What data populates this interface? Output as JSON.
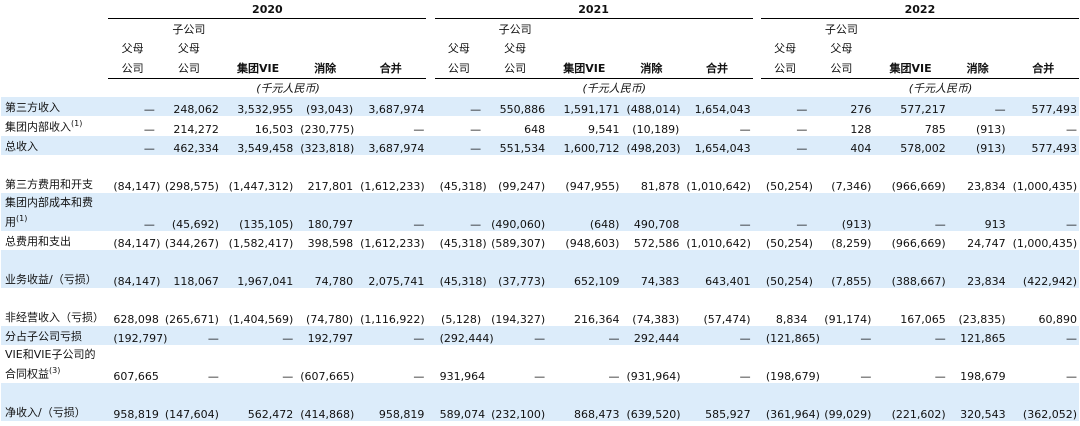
{
  "years": [
    "2020",
    "2021",
    "2022"
  ],
  "sub_header": "子公司",
  "columns": {
    "parent_line1": "父母",
    "parent_line2": "公司",
    "sub_line2": "父母",
    "sub_line3": "公司",
    "vie": "集团VIE",
    "elim": "消除",
    "total": "合并"
  },
  "unit_label": "(千元人民币)",
  "rows": [
    {
      "label": "第三方收入",
      "sup": "",
      "shaded": true,
      "tall": false,
      "cells": [
        "—",
        "248,062",
        "3,532,955",
        "(93,043)",
        "3,687,974",
        "—",
        "550,886",
        "1,591,171",
        "(488,014)",
        "1,654,043",
        "—",
        "276",
        "577,217",
        "—",
        "577,493"
      ]
    },
    {
      "label": "集团内部收入",
      "sup": "(1)",
      "shaded": false,
      "tall": false,
      "cells": [
        "—",
        "214,272",
        "16,503",
        "(230,775)",
        "—",
        "—",
        "648",
        "9,541",
        "(10,189)",
        "—",
        "—",
        "128",
        "785",
        "(913)",
        "—"
      ]
    },
    {
      "label": "总收入",
      "sup": "",
      "shaded": true,
      "tall": false,
      "cells": [
        "—",
        "462,334",
        "3,549,458",
        "(323,818)",
        "3,687,974",
        "—",
        "551,534",
        "1,600,712",
        "(498,203)",
        "1,654,043",
        "—",
        "404",
        "578,002",
        "(913)",
        "577,493"
      ]
    },
    {
      "label": "第三方费用和开支",
      "sup": "",
      "shaded": false,
      "tall": true,
      "cells": [
        "(84,147)",
        "(298,575)",
        "(1,447,312)",
        "217,801",
        "(1,612,233)",
        "(45,318)",
        "(99,247)",
        "(947,955)",
        "81,878",
        "(1,010,642)",
        "(50,254)",
        "(7,346)",
        "(966,669)",
        "23,834",
        "(1,000,435)"
      ]
    },
    {
      "label": "集团内部成本和费用",
      "sup": "(1)",
      "shaded": true,
      "tall": true,
      "cells": [
        "—",
        "(45,692)",
        "(135,105)",
        "180,797",
        "—",
        "—",
        "(490,060)",
        "(648)",
        "490,708",
        "—",
        "—",
        "(913)",
        "—",
        "913",
        "—"
      ]
    },
    {
      "label": "总费用和支出",
      "sup": "",
      "shaded": false,
      "tall": false,
      "cells": [
        "(84,147)",
        "(344,267)",
        "(1,582,417)",
        "398,598",
        "(1,612,233)",
        "(45,318)",
        "(589,307)",
        "(948,603)",
        "572,586",
        "(1,010,642)",
        "(50,254)",
        "(8,259)",
        "(966,669)",
        "24,747",
        "(1,000,435)"
      ]
    },
    {
      "label": "业务收益/（亏损）",
      "sup": "",
      "shaded": true,
      "tall": true,
      "cells": [
        "(84,147)",
        "118,067",
        "1,967,041",
        "74,780",
        "2,075,741",
        "(45,318)",
        "(37,773)",
        "652,109",
        "74,383",
        "643,401",
        "(50,254)",
        "(7,855)",
        "(388,667)",
        "23,834",
        "(422,942)"
      ]
    },
    {
      "label": "非经营收入（亏损）",
      "sup": "",
      "shaded": false,
      "tall": true,
      "cells": [
        "628,098",
        "(265,671)",
        "(1,404,569)",
        "(74,780)",
        "(1,116,922)",
        "(5,128)",
        "(194,327)",
        "216,364",
        "(74,383)",
        "(57,474)",
        "8,834",
        "(91,174)",
        "167,065",
        "(23,835)",
        "60,890"
      ]
    },
    {
      "label": "分占子公司亏损",
      "sup": "",
      "shaded": true,
      "tall": false,
      "cells": [
        "(192,797)",
        "—",
        "—",
        "192,797",
        "—",
        "(292,444)",
        "—",
        "—",
        "292,444",
        "—",
        "(121,865)",
        "—",
        "—",
        "121,865",
        "—"
      ]
    },
    {
      "label": "VIE和VIE子公司的合同权益",
      "sup": "(3)",
      "shaded": false,
      "tall": true,
      "cells": [
        "607,665",
        "—",
        "—",
        "(607,665)",
        "—",
        "931,964",
        "—",
        "—",
        "(931,964)",
        "—",
        "(198,679)",
        "—",
        "—",
        "198,679",
        "—"
      ]
    },
    {
      "label": "净收入/（亏损）",
      "sup": "",
      "shaded": true,
      "tall": true,
      "cells": [
        "958,819",
        "(147,604)",
        "562,472",
        "(414,868)",
        "958,819",
        "589,074",
        "(232,100)",
        "868,473",
        "(639,520)",
        "585,927",
        "(361,964)",
        "(99,029)",
        "(221,602)",
        "320,543",
        "(362,052)"
      ]
    }
  ]
}
